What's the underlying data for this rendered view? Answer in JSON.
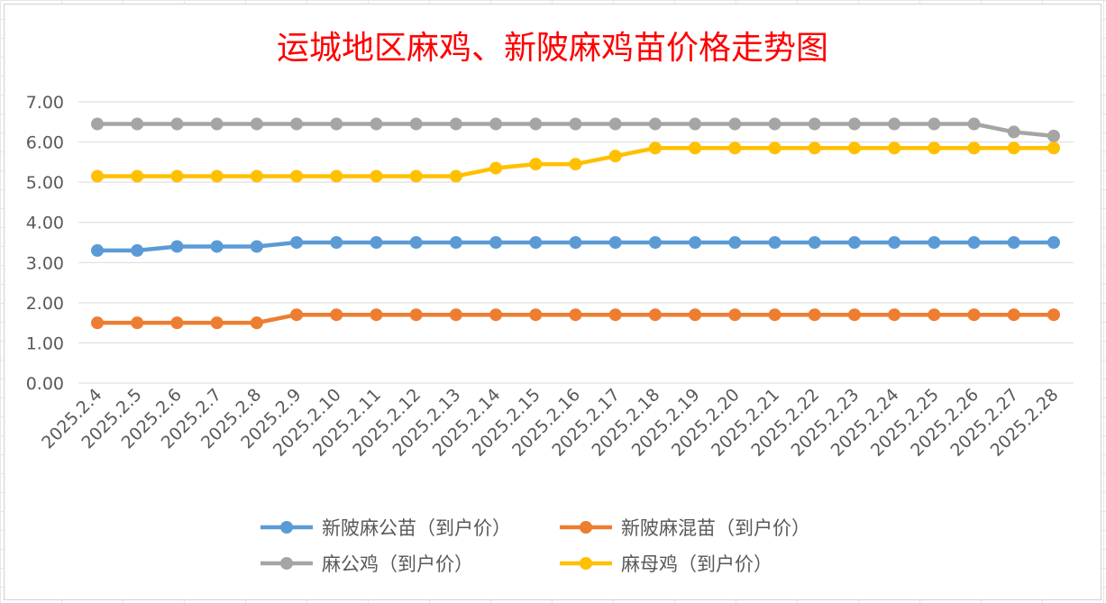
{
  "chart_data": {
    "type": "line",
    "title": "运城地区麻鸡、新陂麻鸡苗价格走势图",
    "xlabel": "",
    "ylabel": "",
    "ylim": [
      0,
      7
    ],
    "yticks": [
      "0.00",
      "1.00",
      "2.00",
      "3.00",
      "4.00",
      "5.00",
      "6.00",
      "7.00"
    ],
    "grid": true,
    "legend_position": "bottom",
    "categories": [
      "2025.2.4",
      "2025.2.5",
      "2025.2.6",
      "2025.2.7",
      "2025.2.8",
      "2025.2.9",
      "2025.2.10",
      "2025.2.11",
      "2025.2.12",
      "2025.2.13",
      "2025.2.14",
      "2025.2.15",
      "2025.2.16",
      "2025.2.17",
      "2025.2.18",
      "2025.2.19",
      "2025.2.20",
      "2025.2.21",
      "2025.2.22",
      "2025.2.23",
      "2025.2.24",
      "2025.2.25",
      "2025.2.26",
      "2025.2.27",
      "2025.2.28"
    ],
    "series": [
      {
        "name": "新陂麻公苗（到户价）",
        "color": "#5b9bd5",
        "values": [
          3.3,
          3.3,
          3.4,
          3.4,
          3.4,
          3.5,
          3.5,
          3.5,
          3.5,
          3.5,
          3.5,
          3.5,
          3.5,
          3.5,
          3.5,
          3.5,
          3.5,
          3.5,
          3.5,
          3.5,
          3.5,
          3.5,
          3.5,
          3.5,
          3.5
        ]
      },
      {
        "name": "新陂麻混苗（到户价）",
        "color": "#ed7d31",
        "values": [
          1.5,
          1.5,
          1.5,
          1.5,
          1.5,
          1.7,
          1.7,
          1.7,
          1.7,
          1.7,
          1.7,
          1.7,
          1.7,
          1.7,
          1.7,
          1.7,
          1.7,
          1.7,
          1.7,
          1.7,
          1.7,
          1.7,
          1.7,
          1.7,
          1.7
        ]
      },
      {
        "name": "麻公鸡（到户价）",
        "color": "#a5a5a5",
        "values": [
          6.45,
          6.45,
          6.45,
          6.45,
          6.45,
          6.45,
          6.45,
          6.45,
          6.45,
          6.45,
          6.45,
          6.45,
          6.45,
          6.45,
          6.45,
          6.45,
          6.45,
          6.45,
          6.45,
          6.45,
          6.45,
          6.45,
          6.45,
          6.25,
          6.15
        ]
      },
      {
        "name": "麻母鸡（到户价）",
        "color": "#ffc000",
        "values": [
          5.15,
          5.15,
          5.15,
          5.15,
          5.15,
          5.15,
          5.15,
          5.15,
          5.15,
          5.15,
          5.35,
          5.45,
          5.45,
          5.65,
          5.85,
          5.85,
          5.85,
          5.85,
          5.85,
          5.85,
          5.85,
          5.85,
          5.85,
          5.85,
          5.85
        ]
      }
    ]
  }
}
